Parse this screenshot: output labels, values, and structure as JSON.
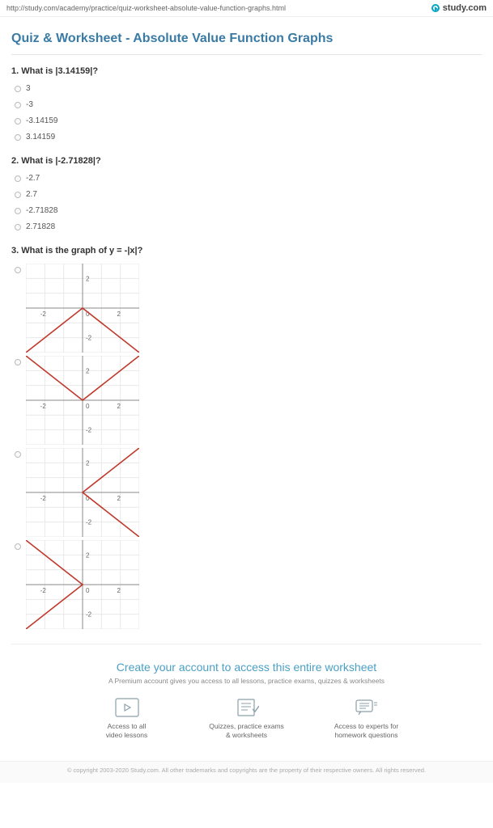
{
  "url": "http://study.com/academy/practice/quiz-worksheet-absolute-value-function-graphs.html",
  "brand": "study.com",
  "page_title": "Quiz & Worksheet - Absolute Value Function Graphs",
  "questions": [
    {
      "number": "1.",
      "prompt": "What is |3.14159|?",
      "options": [
        "3",
        "-3",
        "-3.14159",
        "3.14159"
      ]
    },
    {
      "number": "2.",
      "prompt": "What is |-2.71828|?",
      "options": [
        "-2.7",
        "2.7",
        "-2.71828",
        "2.71828"
      ]
    },
    {
      "number": "3.",
      "prompt": "What is the graph of y = -|x|?"
    }
  ],
  "graph": {
    "width": 140,
    "height": 110,
    "xdomain": [
      -3,
      3
    ],
    "ydomain": [
      -3,
      3
    ],
    "grid_color": "#e8e8e8",
    "axis_color": "#888888",
    "border_color": "#cccccc",
    "line_color": "#c0392b",
    "line_width": 1.6,
    "bg": "#ffffff",
    "tick_color": "#666666",
    "tick_labels_x": [
      -2,
      0,
      2
    ],
    "tick_labels_y": [
      -2,
      2
    ]
  },
  "graph_functions": [
    {
      "type": "neg_abs"
    },
    {
      "type": "abs"
    },
    {
      "type": "abs_rot"
    },
    {
      "type": "neg_abs_rot"
    }
  ],
  "cta": {
    "title": "Create your account to access this entire worksheet",
    "sub": "A Premium account gives you access to all lessons, practice exams, quizzes & worksheets"
  },
  "features": [
    {
      "icon": "video",
      "line1": "Access to all",
      "line2": "video lessons"
    },
    {
      "icon": "quiz",
      "line1": "Quizzes, practice exams",
      "line2": "& worksheets"
    },
    {
      "icon": "expert",
      "line1": "Access to experts for",
      "line2": "homework questions"
    }
  ],
  "copyright": "© copyright 2003-2020 Study.com. All other trademarks and copyrights are the property of their respective owners. All rights reserved."
}
